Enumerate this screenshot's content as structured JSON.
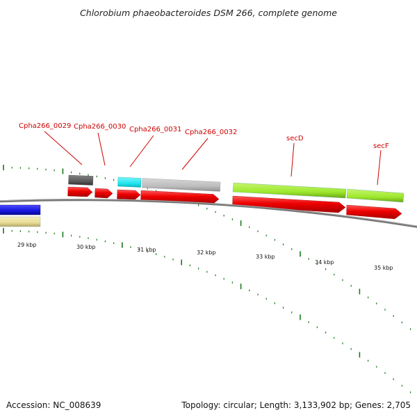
{
  "title": "Chlorobium phaeobacteroides DSM 266, complete genome",
  "footer": {
    "accession": "Accession: NC_008639",
    "topology": "Topology: circular; Length: 3,133,902 bp; Genes: 2,705"
  },
  "colors": {
    "backbone": "#7a7a7a",
    "cds_forward": "#ee0000",
    "label": "#cc0000",
    "tick": "#1a7a1a",
    "blue_feature": "#1515dd",
    "khaki_feature": "#e8dc96",
    "dark_gray_feature": "#5a5a5a",
    "cyan_feature": "#22e6f0",
    "light_gray_feature": "#bdbdbd",
    "lime_feature": "#9ee82e"
  },
  "genes": [
    {
      "name": "Cpha266_0029"
    },
    {
      "name": "Cpha266_0030"
    },
    {
      "name": "Cpha266_0031"
    },
    {
      "name": "Cpha266_0032"
    },
    {
      "name": "secD"
    },
    {
      "name": "secF"
    }
  ],
  "ticks": [
    {
      "label": "29 kbp"
    },
    {
      "label": "30 kbp"
    },
    {
      "label": "31 kbp"
    },
    {
      "label": "32 kbp"
    },
    {
      "label": "33 kbp"
    },
    {
      "label": "34 kbp"
    },
    {
      "label": "35 kbp"
    }
  ]
}
